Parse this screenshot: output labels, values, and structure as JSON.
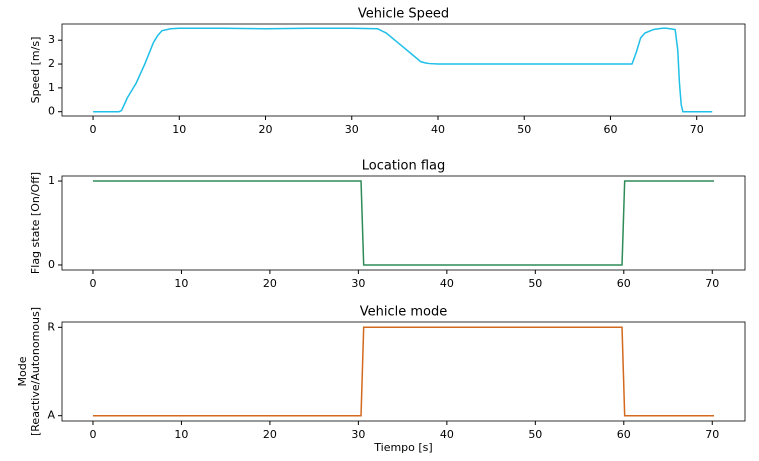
{
  "chart_data": [
    {
      "type": "line",
      "title": "Vehicle Speed",
      "ylabel": [
        "Speed [m/s]"
      ],
      "color": "#1fbfe8",
      "x": [
        0,
        3,
        3.3,
        4,
        5,
        6,
        7,
        7.5,
        8,
        9,
        10,
        15,
        20,
        25,
        30,
        33,
        34,
        35,
        36,
        37,
        38,
        38.5,
        39,
        40,
        50,
        60,
        62.5,
        63,
        63.5,
        64,
        65,
        66,
        66.5,
        67.5,
        67.8,
        68,
        68.2,
        68.4,
        70,
        71.8
      ],
      "values": [
        0,
        0,
        0.05,
        0.6,
        1.2,
        2.0,
        2.9,
        3.2,
        3.4,
        3.48,
        3.5,
        3.5,
        3.48,
        3.5,
        3.5,
        3.48,
        3.3,
        3.0,
        2.7,
        2.4,
        2.1,
        2.05,
        2.02,
        2.0,
        2.0,
        2.0,
        2.0,
        2.5,
        3.1,
        3.3,
        3.45,
        3.5,
        3.5,
        3.45,
        2.6,
        1.2,
        0.3,
        0,
        0,
        0
      ],
      "xlim": [
        -3.6,
        75.6
      ],
      "xticks": [
        0,
        10,
        20,
        30,
        40,
        50,
        60,
        70
      ],
      "ylim": [
        -0.18,
        3.68
      ],
      "yticks": [
        0,
        1,
        2,
        3
      ]
    },
    {
      "type": "line",
      "title": "Location flag",
      "ylabel": [
        "Flag state [On/Off]"
      ],
      "color": "#2e8b57",
      "x": [
        0,
        30.3,
        30.6,
        59.8,
        60.1,
        70.2
      ],
      "values": [
        1,
        1,
        0,
        0,
        1,
        1
      ],
      "xlim": [
        -3.5,
        73.7
      ],
      "xticks": [
        0,
        10,
        20,
        30,
        40,
        50,
        60,
        70
      ],
      "ylim": [
        -0.06,
        1.06
      ],
      "yticks": [
        0,
        1
      ]
    },
    {
      "type": "line",
      "title": "Vehicle mode",
      "ylabel": [
        "Mode",
        "[Reactive/Autonomous]"
      ],
      "xlabel": "Tiempo [s]",
      "color": "#d2691e",
      "x": [
        0,
        30.3,
        30.6,
        59.8,
        60.1,
        70.2
      ],
      "values": [
        0,
        0,
        1,
        1,
        0,
        0
      ],
      "xlim": [
        -3.5,
        73.7
      ],
      "xticks": [
        0,
        10,
        20,
        30,
        40,
        50,
        60,
        70
      ],
      "ylim": [
        -0.06,
        1.06
      ],
      "yticks": [
        {
          "value": 0,
          "label": "A"
        },
        {
          "value": 1,
          "label": "R"
        }
      ]
    }
  ]
}
